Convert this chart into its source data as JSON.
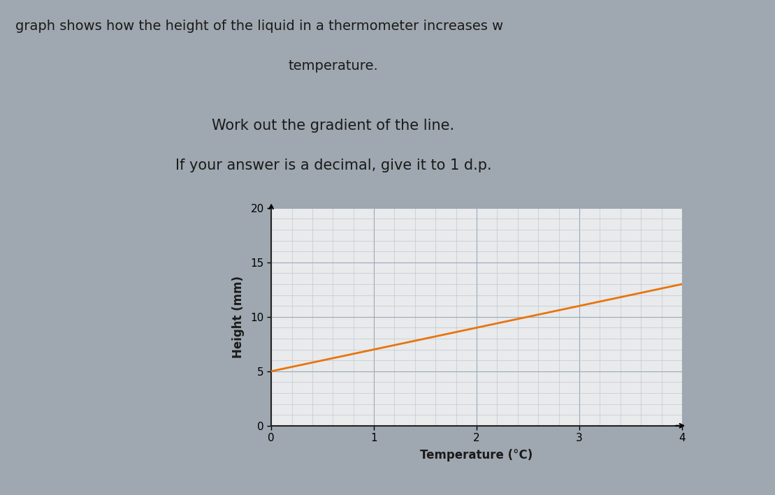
{
  "title_line1": "graph shows how the height of the liquid in a thermometer increases w",
  "title_line2": "temperature.",
  "subtitle_line1": "Work out the gradient of the line.",
  "subtitle_line2": "If your answer is a decimal, give it to 1 d.p.",
  "xlabel": "Temperature (°C)",
  "ylabel": "Height (mm)",
  "xlim": [
    0,
    4
  ],
  "ylim": [
    0,
    20
  ],
  "xticks": [
    0,
    1,
    2,
    3,
    4
  ],
  "yticks": [
    0,
    5,
    10,
    15,
    20
  ],
  "line_x": [
    0,
    4
  ],
  "line_y": [
    5,
    13
  ],
  "line_color": "#E8740C",
  "line_width": 2.0,
  "grid_major_color": "#9aa8b8",
  "grid_minor_color": "#b8c0cc",
  "fig_bg_color": "#9fa8b0",
  "panel_bg_color": "#d0d4d8",
  "chart_bg_color": "#e8eaec",
  "text_color": "#1a1a1a"
}
